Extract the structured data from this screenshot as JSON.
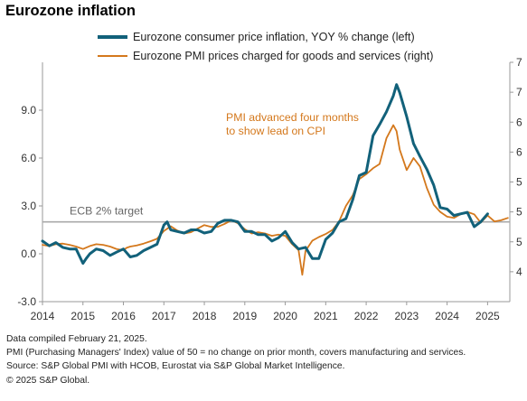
{
  "title": "Eurozone inflation",
  "colors": {
    "cpi": "#12617a",
    "pmi": "#d4781c",
    "target_line": "#a9a9a9",
    "axis": "#9a9a9a"
  },
  "chart_data": {
    "type": "line",
    "title": "Eurozone inflation",
    "x_range": [
      2014.0,
      2025.55
    ],
    "x_ticks": [
      "2014",
      "2015",
      "2016",
      "2017",
      "2018",
      "2019",
      "2020",
      "2021",
      "2022",
      "2023",
      "2024",
      "2025"
    ],
    "left_axis": {
      "ticks": [
        "-3.0",
        "0.0",
        "3.0",
        "6.0",
        "9.0"
      ],
      "range": [
        -3.0,
        12.0
      ]
    },
    "right_axis": {
      "ticks": [
        "4",
        "5",
        "5",
        "5",
        "6",
        "6",
        "7",
        "7"
      ],
      "range": [
        40.0,
        80.0
      ],
      "note": "right tick labels partially cropped"
    },
    "series": [
      {
        "name": "Eurozone consumer price inflation, YOY % change (left)",
        "axis": "left",
        "color": "#12617a",
        "x": [
          2014.0,
          2014.17,
          2014.33,
          2014.5,
          2014.67,
          2014.83,
          2015.0,
          2015.08,
          2015.17,
          2015.33,
          2015.5,
          2015.67,
          2015.83,
          2016.0,
          2016.17,
          2016.33,
          2016.5,
          2016.67,
          2016.83,
          2017.0,
          2017.08,
          2017.17,
          2017.33,
          2017.5,
          2017.67,
          2017.83,
          2018.0,
          2018.17,
          2018.33,
          2018.5,
          2018.67,
          2018.83,
          2019.0,
          2019.17,
          2019.33,
          2019.5,
          2019.67,
          2019.83,
          2020.0,
          2020.17,
          2020.33,
          2020.5,
          2020.67,
          2020.83,
          2021.0,
          2021.17,
          2021.33,
          2021.5,
          2021.67,
          2021.83,
          2022.0,
          2022.17,
          2022.33,
          2022.5,
          2022.67,
          2022.75,
          2022.83,
          2023.0,
          2023.17,
          2023.33,
          2023.5,
          2023.67,
          2023.83,
          2024.0,
          2024.17,
          2024.33,
          2024.5,
          2024.67,
          2024.83,
          2025.0
        ],
        "values": [
          0.8,
          0.5,
          0.7,
          0.4,
          0.3,
          0.3,
          -0.6,
          -0.3,
          0.0,
          0.3,
          0.2,
          -0.1,
          0.1,
          0.3,
          -0.2,
          -0.1,
          0.2,
          0.4,
          0.6,
          1.8,
          2.0,
          1.5,
          1.4,
          1.3,
          1.5,
          1.5,
          1.3,
          1.4,
          1.9,
          2.1,
          2.1,
          2.0,
          1.4,
          1.4,
          1.2,
          1.2,
          0.8,
          1.0,
          1.4,
          0.7,
          0.3,
          0.4,
          -0.3,
          -0.3,
          0.9,
          1.3,
          2.0,
          2.2,
          3.4,
          4.9,
          5.1,
          7.4,
          8.1,
          8.9,
          9.9,
          10.6,
          10.1,
          8.6,
          6.9,
          6.1,
          5.3,
          4.3,
          2.9,
          2.8,
          2.4,
          2.5,
          2.6,
          1.7,
          2.0,
          2.5
        ]
      },
      {
        "name": "Eurozone PMI prices charged for goods and services (right)",
        "axis": "right",
        "color": "#d4781c",
        "x": [
          2014.0,
          2014.17,
          2014.33,
          2014.5,
          2014.67,
          2014.83,
          2015.0,
          2015.17,
          2015.33,
          2015.5,
          2015.67,
          2015.83,
          2016.0,
          2016.08,
          2016.17,
          2016.33,
          2016.5,
          2016.67,
          2016.83,
          2017.0,
          2017.17,
          2017.33,
          2017.5,
          2017.67,
          2017.83,
          2018.0,
          2018.17,
          2018.33,
          2018.5,
          2018.67,
          2018.83,
          2019.0,
          2019.17,
          2019.33,
          2019.5,
          2019.67,
          2019.83,
          2020.0,
          2020.17,
          2020.33,
          2020.42,
          2020.5,
          2020.67,
          2020.83,
          2021.0,
          2021.17,
          2021.33,
          2021.5,
          2021.67,
          2021.83,
          2022.0,
          2022.17,
          2022.33,
          2022.5,
          2022.67,
          2022.75,
          2022.83,
          2023.0,
          2023.17,
          2023.33,
          2023.5,
          2023.67,
          2023.83,
          2024.0,
          2024.17,
          2024.33,
          2024.5,
          2024.67,
          2024.83,
          2025.0,
          2025.17,
          2025.33,
          2025.5
        ],
        "values": [
          49.5,
          49.3,
          49.6,
          49.7,
          49.5,
          49.2,
          48.8,
          49.3,
          49.6,
          49.5,
          49.2,
          48.8,
          48.6,
          49.0,
          49.2,
          49.4,
          49.7,
          50.1,
          50.5,
          51.8,
          52.6,
          51.9,
          51.4,
          51.6,
          52.2,
          52.8,
          52.5,
          52.5,
          53.0,
          53.6,
          53.1,
          52.1,
          51.4,
          51.6,
          51.4,
          51.0,
          51.2,
          51.0,
          49.6,
          48.6,
          44.5,
          48.5,
          50.2,
          50.8,
          51.3,
          52.0,
          53.4,
          56.0,
          57.8,
          60.5,
          61.3,
          62.3,
          63.0,
          67.3,
          69.5,
          68.5,
          65.4,
          62.0,
          64.0,
          62.6,
          59.0,
          56.2,
          55.0,
          54.2,
          54.0,
          54.6,
          55.0,
          54.6,
          53.2,
          54.4,
          53.4,
          53.6,
          54.0
        ]
      }
    ],
    "reference_line": {
      "label": "ECB 2% target",
      "value": 2.0,
      "axis": "left"
    },
    "annotation": {
      "lines": [
        "PMI advanced four months",
        "to show lead on CPI"
      ]
    }
  },
  "footer": [
    "Data compiled February 21, 2025.",
    "PMI (Purchasing Managers' Index) value of 50 = no change on prior month, covers manufacturing and services.",
    "Source: S&P Global PMI with HCOB, Eurostat via S&P Global Market Intelligence.",
    "© 2025 S&P Global."
  ]
}
